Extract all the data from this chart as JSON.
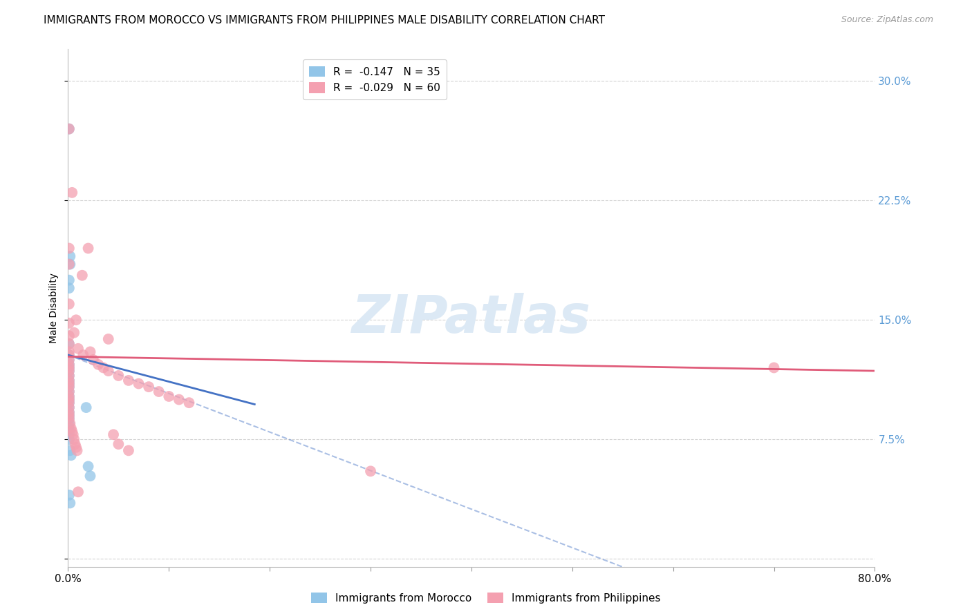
{
  "title": "IMMIGRANTS FROM MOROCCO VS IMMIGRANTS FROM PHILIPPINES MALE DISABILITY CORRELATION CHART",
  "source": "Source: ZipAtlas.com",
  "ylabel": "Male Disability",
  "yticks": [
    0.0,
    0.075,
    0.15,
    0.225,
    0.3
  ],
  "ytick_labels": [
    "",
    "7.5%",
    "15.0%",
    "22.5%",
    "30.0%"
  ],
  "xrange": [
    0.0,
    0.8
  ],
  "yrange": [
    -0.005,
    0.32
  ],
  "watermark": "ZIPatlas",
  "morocco_R": -0.147,
  "morocco_N": 35,
  "philippines_R": -0.029,
  "philippines_N": 60,
  "morocco_color": "#92C5E8",
  "philippines_color": "#F4A0B0",
  "morocco_line_color": "#4472C4",
  "philippines_line_color": "#E05C7A",
  "morocco_scatter": [
    [
      0.001,
      0.27
    ],
    [
      0.002,
      0.19
    ],
    [
      0.002,
      0.185
    ],
    [
      0.001,
      0.175
    ],
    [
      0.001,
      0.17
    ],
    [
      0.001,
      0.135
    ],
    [
      0.001,
      0.128
    ],
    [
      0.001,
      0.125
    ],
    [
      0.001,
      0.122
    ],
    [
      0.001,
      0.12
    ],
    [
      0.001,
      0.118
    ],
    [
      0.001,
      0.115
    ],
    [
      0.001,
      0.112
    ],
    [
      0.001,
      0.11
    ],
    [
      0.001,
      0.108
    ],
    [
      0.001,
      0.105
    ],
    [
      0.001,
      0.102
    ],
    [
      0.001,
      0.1
    ],
    [
      0.001,
      0.098
    ],
    [
      0.001,
      0.095
    ],
    [
      0.001,
      0.092
    ],
    [
      0.001,
      0.09
    ],
    [
      0.001,
      0.088
    ],
    [
      0.001,
      0.085
    ],
    [
      0.001,
      0.082
    ],
    [
      0.001,
      0.08
    ],
    [
      0.001,
      0.078
    ],
    [
      0.001,
      0.075
    ],
    [
      0.002,
      0.068
    ],
    [
      0.003,
      0.065
    ],
    [
      0.018,
      0.095
    ],
    [
      0.02,
      0.058
    ],
    [
      0.022,
      0.052
    ],
    [
      0.001,
      0.04
    ],
    [
      0.002,
      0.035
    ]
  ],
  "philippines_scatter": [
    [
      0.001,
      0.27
    ],
    [
      0.004,
      0.23
    ],
    [
      0.001,
      0.195
    ],
    [
      0.02,
      0.195
    ],
    [
      0.001,
      0.185
    ],
    [
      0.014,
      0.178
    ],
    [
      0.001,
      0.16
    ],
    [
      0.008,
      0.15
    ],
    [
      0.001,
      0.148
    ],
    [
      0.006,
      0.142
    ],
    [
      0.001,
      0.14
    ],
    [
      0.04,
      0.138
    ],
    [
      0.001,
      0.135
    ],
    [
      0.01,
      0.132
    ],
    [
      0.001,
      0.13
    ],
    [
      0.022,
      0.13
    ],
    [
      0.001,
      0.128
    ],
    [
      0.015,
      0.128
    ],
    [
      0.001,
      0.125
    ],
    [
      0.025,
      0.125
    ],
    [
      0.001,
      0.122
    ],
    [
      0.03,
      0.122
    ],
    [
      0.001,
      0.12
    ],
    [
      0.035,
      0.12
    ],
    [
      0.001,
      0.118
    ],
    [
      0.04,
      0.118
    ],
    [
      0.001,
      0.115
    ],
    [
      0.05,
      0.115
    ],
    [
      0.001,
      0.112
    ],
    [
      0.06,
      0.112
    ],
    [
      0.001,
      0.11
    ],
    [
      0.07,
      0.11
    ],
    [
      0.001,
      0.108
    ],
    [
      0.08,
      0.108
    ],
    [
      0.001,
      0.105
    ],
    [
      0.09,
      0.105
    ],
    [
      0.001,
      0.102
    ],
    [
      0.1,
      0.102
    ],
    [
      0.001,
      0.1
    ],
    [
      0.11,
      0.1
    ],
    [
      0.001,
      0.098
    ],
    [
      0.12,
      0.098
    ],
    [
      0.001,
      0.095
    ],
    [
      0.045,
      0.078
    ],
    [
      0.001,
      0.092
    ],
    [
      0.05,
      0.072
    ],
    [
      0.001,
      0.09
    ],
    [
      0.06,
      0.068
    ],
    [
      0.7,
      0.12
    ],
    [
      0.3,
      0.055
    ],
    [
      0.001,
      0.088
    ],
    [
      0.002,
      0.085
    ],
    [
      0.003,
      0.082
    ],
    [
      0.004,
      0.08
    ],
    [
      0.005,
      0.078
    ],
    [
      0.006,
      0.075
    ],
    [
      0.007,
      0.072
    ],
    [
      0.008,
      0.07
    ],
    [
      0.009,
      0.068
    ],
    [
      0.01,
      0.042
    ]
  ],
  "legend_morocco_label": "Immigrants from Morocco",
  "legend_philippines_label": "Immigrants from Philippines",
  "title_fontsize": 11,
  "source_fontsize": 9,
  "axis_label_fontsize": 10,
  "tick_fontsize": 11,
  "legend_fontsize": 11,
  "background_color": "#FFFFFF",
  "grid_color": "#C8C8C8",
  "right_ytick_color": "#5B9BD5",
  "watermark_color": "#DCE9F5",
  "watermark_fontsize": 55
}
